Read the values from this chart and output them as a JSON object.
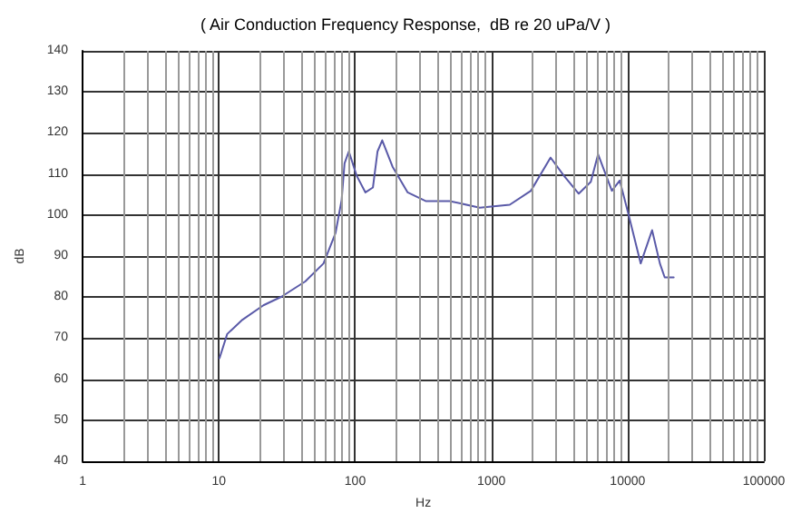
{
  "chart_data": {
    "type": "line",
    "title": "( Air Conduction Frequency Response,  dB re 20 uPa/V )",
    "xlabel": "Hz",
    "ylabel": "dB",
    "log": "x",
    "grid": true,
    "marker": "none",
    "line_style": "solid",
    "xlim": [
      1,
      100000
    ],
    "xticks": [
      1,
      10,
      100,
      1000,
      10000,
      100000
    ],
    "ylim": [
      40,
      140
    ],
    "yticks": [
      40,
      50,
      60,
      70,
      80,
      90,
      100,
      110,
      120,
      130,
      140
    ],
    "series": [
      {
        "color": "#5a5aa8",
        "x": [
          10.1,
          11.5,
          14.9,
          21.2,
          28.8,
          43,
          58.6,
          71.8,
          79.6,
          83.6,
          89.9,
          102.5,
          119,
          135,
          146,
          158,
          188,
          243,
          329,
          494,
          821,
          1364,
          1950,
          2720,
          3400,
          4380,
          5370,
          6070,
          7670,
          8750,
          10180,
          12480,
          15130,
          17260,
          18720,
          21800
        ],
        "values": [
          65.1,
          71,
          74.5,
          78,
          80.1,
          83.8,
          88.2,
          95.6,
          103.7,
          112.6,
          115.5,
          109.6,
          105.5,
          106.7,
          115.5,
          118.2,
          111.8,
          105.5,
          103.4,
          103.4,
          101.8,
          102.5,
          105.9,
          114,
          109.6,
          105.2,
          108.1,
          114.8,
          105.9,
          108.4,
          100,
          88.2,
          96.3,
          88.2,
          84.8,
          84.8
        ]
      }
    ]
  }
}
